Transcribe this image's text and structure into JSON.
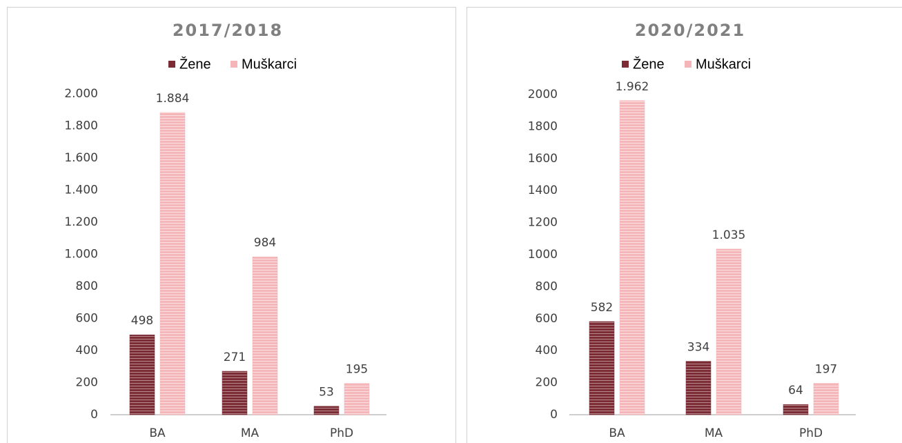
{
  "chart_data": [
    {
      "type": "bar",
      "title": "2017/2018",
      "categories": [
        "BA",
        "MA",
        "PhD"
      ],
      "series": [
        {
          "name": "Žene",
          "color": "#7b2c35",
          "values": [
            498,
            271,
            53
          ]
        },
        {
          "name": "Muškarci",
          "color": "#f4b6b8",
          "values": [
            1884,
            984,
            195
          ],
          "value_labels": [
            "1.884",
            "984",
            "195"
          ]
        }
      ],
      "ylim": [
        0,
        2000
      ],
      "yticks": [
        0,
        200,
        400,
        600,
        800,
        {
          "value": 1000,
          "label": "1.000"
        },
        {
          "value": 1200,
          "label": "1.200"
        },
        {
          "value": 1400,
          "label": "1.400"
        },
        {
          "value": 1600,
          "label": "1.600"
        },
        {
          "value": 1800,
          "label": "1.800"
        },
        {
          "value": 2000,
          "label": "2.000"
        }
      ],
      "legend": "top"
    },
    {
      "type": "bar",
      "title": "2020/2021",
      "categories": [
        "BA",
        "MA",
        "PhD"
      ],
      "series": [
        {
          "name": "Žene",
          "color": "#7b2c35",
          "values": [
            582,
            334,
            64
          ]
        },
        {
          "name": "Muškarci",
          "color": "#f4b6b8",
          "values": [
            1962,
            1035,
            197
          ],
          "value_labels": [
            "1.962",
            "1.035",
            "197"
          ]
        }
      ],
      "ylim": [
        0,
        2000
      ],
      "yticks": [
        0,
        200,
        400,
        600,
        800,
        1000,
        1200,
        1400,
        1600,
        1800,
        2000
      ],
      "legend": "top"
    }
  ]
}
